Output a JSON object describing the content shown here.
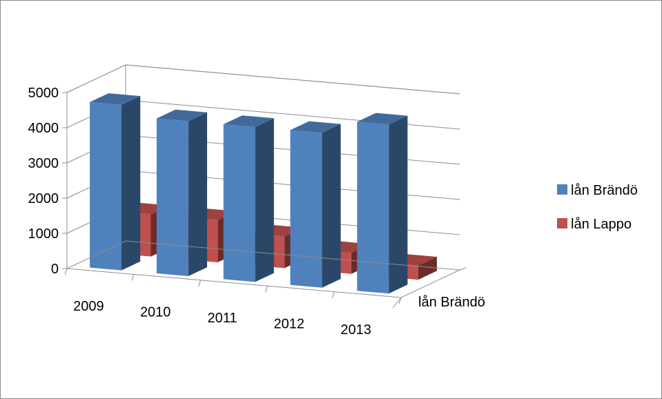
{
  "chart_data": {
    "type": "bar",
    "subtype": "3d-column",
    "title": "",
    "xlabel": "",
    "ylabel": "",
    "categories": [
      "2009",
      "2010",
      "2011",
      "2012",
      "2013"
    ],
    "series": [
      {
        "name": "lån Brändö",
        "values": [
          4700,
          4400,
          4400,
          4400,
          4800
        ],
        "color": "#4f81bd"
      },
      {
        "name": "lån Lappo",
        "values": [
          1200,
          1200,
          900,
          600,
          400
        ],
        "color": "#c0504d"
      }
    ],
    "ylim": [
      0,
      5000
    ],
    "yticks": [
      "0",
      "1000",
      "2000",
      "3000",
      "4000",
      "5000"
    ],
    "depth_axis_label": "lån Brändö",
    "grid": true,
    "legend_position": "right"
  }
}
